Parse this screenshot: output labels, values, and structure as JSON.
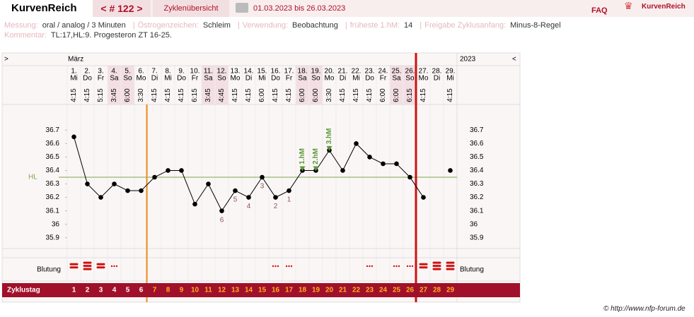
{
  "header": {
    "app_title": "KurvenReich",
    "cycle_nav": "< # 122 >",
    "overview_tab": "Zyklenübersicht",
    "date_range": "01.03.2023 bis 26.03.2023",
    "faq": "FAQ",
    "logo_text": "KurvenReich"
  },
  "info": {
    "items": [
      {
        "label": "Messung:",
        "value": "oral / analog / 3 Minuten"
      },
      {
        "label": "Östrogenzeichen:",
        "value": "Schleim"
      },
      {
        "label": "Verwendung:",
        "value": "Beobachtung"
      },
      {
        "label": "früheste 1.hM:",
        "value": "14"
      },
      {
        "label": "Freigabe Zyklusanfang:",
        "value": "Minus-8-Regel"
      }
    ],
    "comment_label": "Kommentar:",
    "comment": "TL:17,HL:9. Progesteron ZT 16-25."
  },
  "footer": "© http://www.nfp-forum.de",
  "chart_data": {
    "type": "line",
    "nav_left": ">",
    "month": "März",
    "year": "2023",
    "nav_right": "<",
    "dates": [
      "1.",
      "2.",
      "3.",
      "4.",
      "5.",
      "6.",
      "7.",
      "8.",
      "9.",
      "10.",
      "11.",
      "12.",
      "13.",
      "14.",
      "15.",
      "16.",
      "17.",
      "18.",
      "19.",
      "20.",
      "21.",
      "22.",
      "23.",
      "24.",
      "25.",
      "26.",
      "27.",
      "28.",
      "29."
    ],
    "weekdays": [
      "Mi",
      "Do",
      "Fr",
      "Sa",
      "So",
      "Mo",
      "Di",
      "Mi",
      "Do",
      "Fr",
      "Sa",
      "So",
      "Mo",
      "Di",
      "Mi",
      "Do",
      "Fr",
      "Sa",
      "So",
      "Mo",
      "Di",
      "Mi",
      "Do",
      "Fr",
      "Sa",
      "So",
      "Mo",
      "Di",
      "Mi"
    ],
    "times": [
      "4:15",
      "4:15",
      "5:15",
      "3:45",
      "6:00",
      "3:30",
      "4:15",
      "4:15",
      "4:15",
      "6:15",
      "3:45",
      "4:45",
      "4:15",
      "4:15",
      "6:00",
      "4:15",
      "4:15",
      "6:00",
      "6:00",
      "3:30",
      "4:15",
      "4:15",
      "4:15",
      "6:00",
      "6:00",
      "6:15",
      "4:15",
      null,
      "4:15"
    ],
    "series": [
      {
        "color": "#000000",
        "values": [
          36.65,
          36.3,
          36.2,
          36.3,
          36.25,
          36.25,
          36.35,
          36.4,
          36.4,
          36.15,
          36.3,
          36.1,
          36.25,
          36.2,
          36.35,
          36.2,
          36.25,
          36.4,
          36.4,
          36.55,
          36.4,
          36.6,
          36.5,
          36.45,
          36.45,
          36.35,
          36.2,
          null,
          36.4
        ]
      }
    ],
    "ylim": [
      35.82,
      36.88
    ],
    "yticks": [
      35.9,
      36,
      36.1,
      36.2,
      36.3,
      36.4,
      36.5,
      36.6,
      36.7
    ],
    "coverline": {
      "label": "HL",
      "value": 36.35,
      "color": "#7aa84a"
    },
    "low_labels": [
      null,
      null,
      null,
      null,
      null,
      null,
      null,
      null,
      null,
      null,
      null,
      "6",
      "5",
      "4",
      "3",
      "2",
      "1",
      null,
      null,
      null,
      null,
      null,
      null,
      null,
      null,
      null,
      null,
      null,
      null
    ],
    "peak_labels": [
      null,
      null,
      null,
      null,
      null,
      null,
      null,
      null,
      null,
      null,
      null,
      null,
      null,
      null,
      null,
      null,
      null,
      "1.hM",
      "2.hM",
      "3.hM",
      null,
      null,
      null,
      null,
      null,
      null,
      null,
      null,
      null
    ],
    "bleeding_label": "Blutung",
    "bleeding": [
      2,
      3,
      2,
      1,
      0,
      0,
      0,
      0,
      0,
      0,
      0,
      0,
      0,
      0,
      0,
      1,
      1,
      0,
      0,
      0,
      0,
      0,
      1,
      0,
      1,
      1,
      2,
      3,
      3
    ],
    "cycle_day_label": "Zyklustag",
    "cycle_days": [
      1,
      2,
      3,
      4,
      5,
      6,
      7,
      8,
      9,
      10,
      11,
      12,
      13,
      14,
      15,
      16,
      17,
      18,
      19,
      20,
      21,
      22,
      23,
      24,
      25,
      26,
      27,
      28,
      29
    ]
  }
}
